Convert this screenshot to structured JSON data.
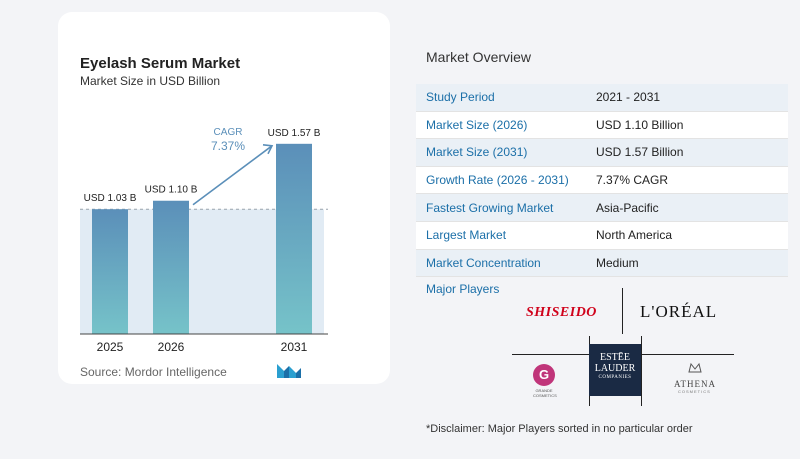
{
  "chart_card": {
    "title": "Eyelash Serum Market",
    "subtitle": "Market Size in USD Billion",
    "source": "Source:  Mordor Intelligence"
  },
  "chart_data": {
    "type": "bar",
    "title": "Eyelash Serum Market",
    "subtitle": "Market Size in USD Billion",
    "categories": [
      "2025",
      "2026",
      "2031"
    ],
    "values": [
      1.03,
      1.1,
      1.57
    ],
    "data_labels": [
      "USD 1.03 B",
      "USD 1.10 B",
      "USD 1.57 B"
    ],
    "annotation": {
      "label": "CAGR",
      "value": "7.37%"
    },
    "ylim": [
      0,
      1.75
    ],
    "colors": {
      "bar_top": "#5b8fb9",
      "bar_bottom": "#76c3c9",
      "arrow": "#5b8fb9",
      "cagr_text": "#5b8fb9",
      "band": "#e1ebf4"
    }
  },
  "overview": {
    "title": "Market Overview",
    "rows": [
      {
        "label": "Study Period",
        "value": "2021 - 2031"
      },
      {
        "label": "Market Size (2026)",
        "value": "USD 1.10 Billion"
      },
      {
        "label": "Market Size (2031)",
        "value": "USD 1.57 Billion"
      },
      {
        "label": "Growth Rate (2026 - 2031)",
        "value": "7.37% CAGR"
      },
      {
        "label": "Fastest Growing Market",
        "value": "Asia-Pacific"
      },
      {
        "label": "Largest Market",
        "value": "North America"
      },
      {
        "label": "Market Concentration",
        "value": "Medium"
      }
    ],
    "major_players_title": "Major Players",
    "players": {
      "shiseido": "SHISEIDO",
      "loreal": "L'ORÉAL",
      "estee_l1": "ESTĒE",
      "estee_l2": "LAUDER",
      "estee_l3": "COMPANIES",
      "grande": "G",
      "grande_sub": "GRANDE COSMETICS",
      "athena": "ATHENA",
      "athena_sub": "COSMETICS"
    },
    "disclaimer": "*Disclaimer: Major Players sorted in no particular order"
  }
}
